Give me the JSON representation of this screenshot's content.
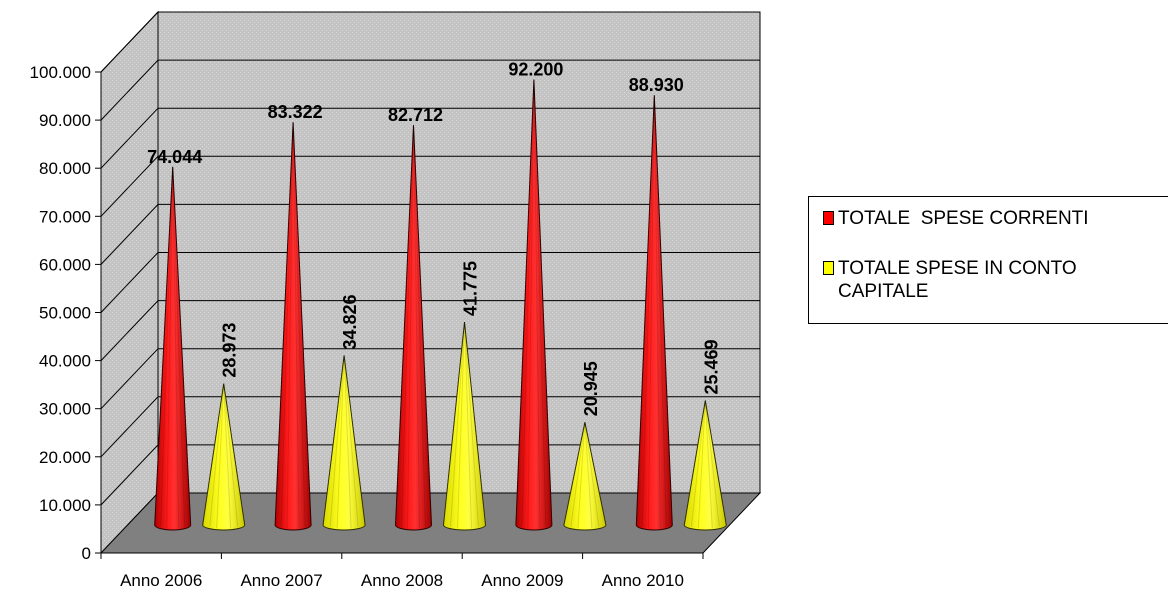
{
  "chart_data": {
    "type": "bar",
    "style": "3d-cone",
    "title": "",
    "xlabel": "",
    "ylabel": "",
    "categories": [
      "Anno 2006",
      "Anno 2007",
      "Anno 2008",
      "Anno 2009",
      "Anno 2010"
    ],
    "series": [
      {
        "name": "TOTALE  SPESE CORRENTI",
        "values": [
          74044,
          83322,
          82712,
          92200,
          88930
        ],
        "labels": [
          "74.044",
          "83.322",
          "82.712",
          "92.200",
          "88.930"
        ],
        "color": "#ff0000"
      },
      {
        "name": "TOTALE SPESE IN CONTO CAPITALE",
        "values": [
          28973,
          34826,
          41775,
          20945,
          25469
        ],
        "labels": [
          "28.973",
          "34.826",
          "41.775",
          "20.945",
          "25.469"
        ],
        "color": "#ffff00"
      }
    ],
    "ylim": [
      0,
      100000
    ],
    "yticks": [
      "0",
      "10.000",
      "20.000",
      "30.000",
      "40.000",
      "50.000",
      "60.000",
      "70.000",
      "80.000",
      "90.000",
      "100.000"
    ],
    "grid": true,
    "legend": "right",
    "wall_color": "#c0c0c0",
    "floor_color": "#808080"
  },
  "legend": {
    "items": [
      {
        "label": "TOTALE  SPESE CORRENTI",
        "color": "#ff0000"
      },
      {
        "label": "TOTALE SPESE IN CONTO\nCAPITALE",
        "color": "#ffff00"
      }
    ]
  }
}
